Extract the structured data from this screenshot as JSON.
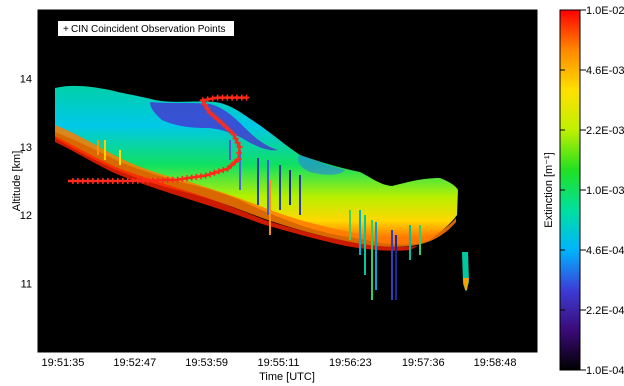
{
  "chart_data": {
    "type": "heatmap",
    "xlabel": "Time [UTC]",
    "ylabel": "Altitude [km]",
    "x_tick_labels": [
      "19:51:35",
      "19:52:47",
      "19:53:59",
      "19:55:11",
      "19:56:23",
      "19:57:36",
      "19:58:48"
    ],
    "x_range": [
      "19:51:10",
      "19:59:30"
    ],
    "y_ticks": [
      11,
      12,
      13,
      14
    ],
    "ylim": [
      10.0,
      15.0
    ],
    "legend": {
      "marker": "+",
      "label": "CIN Coincident Observation Points",
      "position": "top-left"
    },
    "colorbar": {
      "title": "Extinction [m⁻¹]",
      "scale": "log",
      "range": [
        0.0001,
        0.01
      ],
      "tick_labels": [
        "1.0E-02",
        "4.6E-03",
        "2.2E-03",
        "1.0E-03",
        "4.6E-04",
        "2.2E-04",
        "1.0E-04"
      ],
      "colors": [
        "#000000",
        "#3b0a78",
        "#3c3cd6",
        "#00b4ff",
        "#00e0a0",
        "#22e022",
        "#c0f000",
        "#ffe000",
        "#ff8800",
        "#ff0000"
      ]
    },
    "background_color": "#000000",
    "marker_color": "#ff2a1a",
    "cin_points": [
      {
        "x": "19:54:39",
        "y": 13.72
      },
      {
        "x": "19:54:10",
        "y": 13.72
      },
      {
        "x": "19:53:55",
        "y": 13.68
      },
      {
        "x": "19:54:02",
        "y": 13.5
      },
      {
        "x": "19:54:14",
        "y": 13.35
      },
      {
        "x": "19:54:26",
        "y": 13.18
      },
      {
        "x": "19:54:32",
        "y": 13.0
      },
      {
        "x": "19:54:31",
        "y": 12.82
      },
      {
        "x": "19:54:20",
        "y": 12.68
      },
      {
        "x": "19:53:58",
        "y": 12.58
      },
      {
        "x": "19:53:30",
        "y": 12.52
      },
      {
        "x": "19:52:40",
        "y": 12.5
      },
      {
        "x": "19:51:40",
        "y": 12.5
      }
    ]
  }
}
